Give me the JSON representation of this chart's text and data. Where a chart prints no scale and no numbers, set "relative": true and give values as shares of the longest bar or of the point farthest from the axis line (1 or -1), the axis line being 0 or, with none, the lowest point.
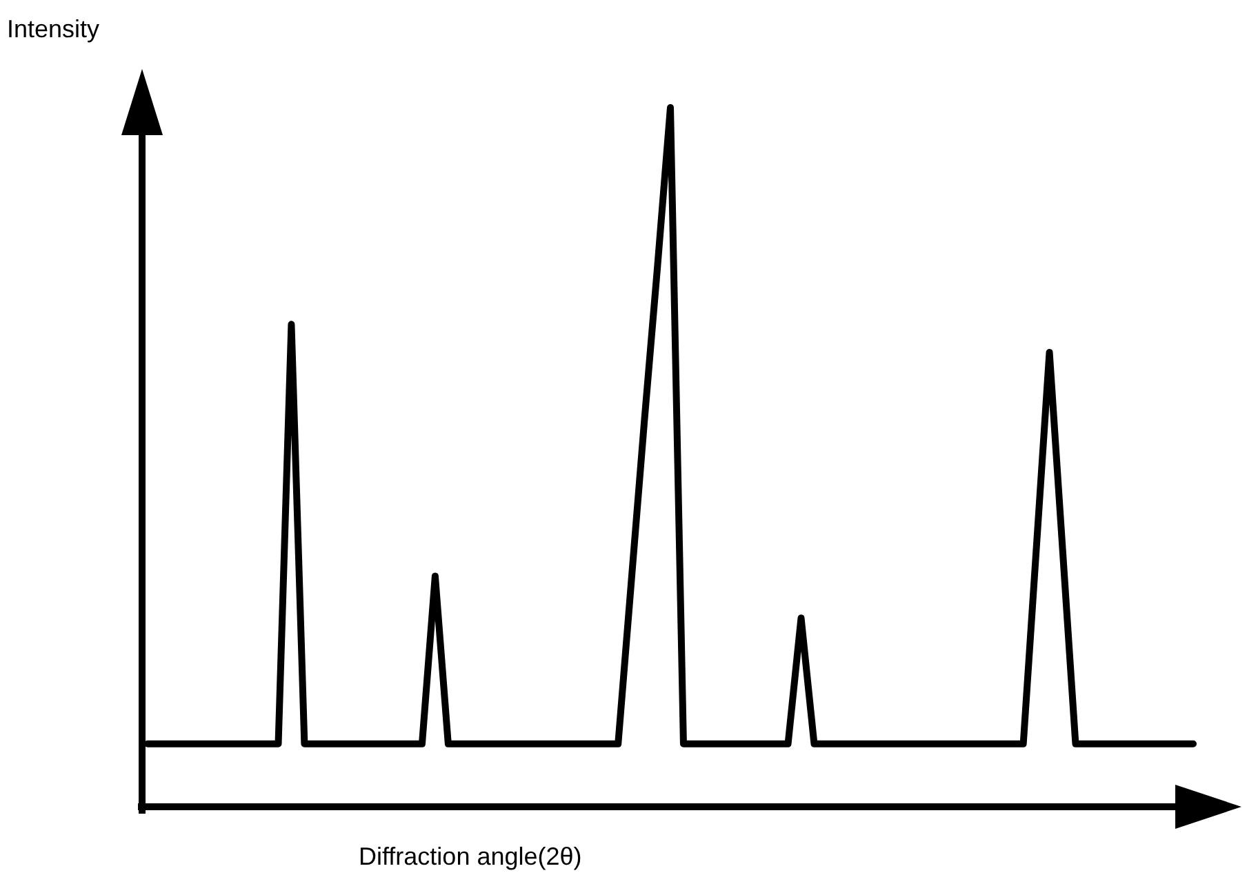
{
  "chart_data": {
    "type": "line",
    "relative": true,
    "ylabel": "Intensity",
    "xlabel": "Diffraction angle(2θ)",
    "marker": "none",
    "color": "#000000",
    "categories": [
      null,
      null,
      null,
      null,
      null,
      null,
      null,
      null,
      null,
      null,
      null,
      null,
      null,
      null,
      null,
      null,
      null,
      null,
      null,
      null,
      null,
      null,
      null,
      null,
      null,
      null,
      null,
      null,
      null,
      null,
      null,
      null,
      null,
      null,
      null,
      null,
      null,
      null,
      null,
      null,
      null,
      null,
      null,
      null,
      null,
      null,
      null,
      null,
      null,
      null,
      null,
      null,
      null,
      null,
      null,
      null,
      null,
      null,
      null,
      null,
      null,
      null,
      null,
      null,
      null,
      null,
      null,
      null,
      null,
      null,
      null,
      null,
      null,
      null,
      null,
      null,
      null,
      null,
      null,
      null,
      null
    ],
    "values": [
      0.09,
      0.09,
      0.09,
      0.09,
      0.09,
      0.09,
      0.09,
      0.09,
      0.09,
      0.09,
      0.09,
      0.69,
      0.09,
      0.09,
      0.09,
      0.09,
      0.09,
      0.09,
      0.09,
      0.09,
      0.09,
      0.09,
      0.33,
      0.09,
      0.09,
      0.09,
      0.09,
      0.09,
      0.09,
      0.09,
      0.09,
      0.09,
      0.09,
      0.09,
      0.09,
      0.09,
      0.09,
      0.32,
      0.55,
      0.77,
      1,
      0.09,
      0.09,
      0.09,
      0.09,
      0.09,
      0.09,
      0.09,
      0.09,
      0.09,
      0.27,
      0.09,
      0.09,
      0.09,
      0.09,
      0.09,
      0.09,
      0.09,
      0.09,
      0.09,
      0.09,
      0.09,
      0.09,
      0.09,
      0.09,
      0.09,
      0.09,
      0.09,
      0.37,
      0.65,
      0.37,
      0.09,
      0.09,
      0.09,
      0.09,
      0.09,
      0.09,
      0.09,
      0.09,
      0.09,
      0.09
    ]
  }
}
